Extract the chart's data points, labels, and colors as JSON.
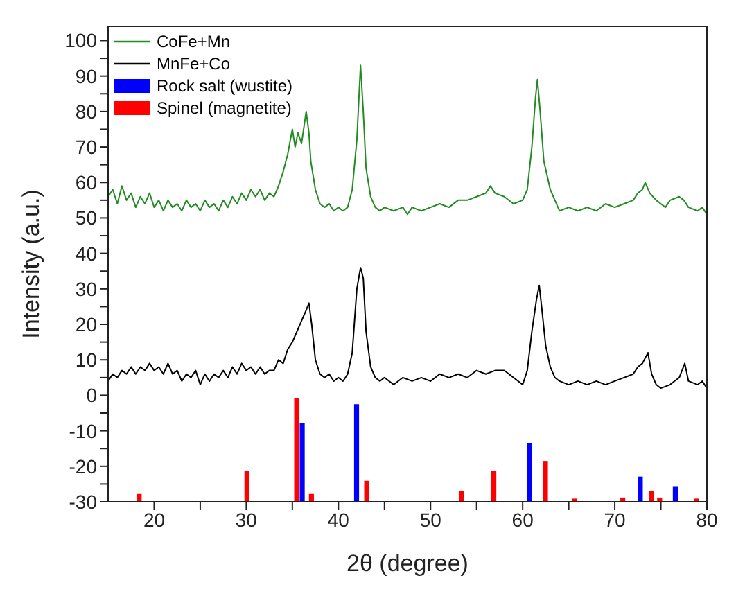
{
  "chart_data": {
    "type": "line",
    "xlabel": "2θ (degree)",
    "ylabel": "Intensity (a.u.)",
    "xlim": [
      15,
      80
    ],
    "ylim": [
      -30,
      104
    ],
    "xticks": [
      20,
      {
        "value": 25,
        "label": null
      },
      30,
      {
        "value": 35,
        "label": null
      },
      40,
      {
        "value": 45,
        "label": null
      },
      50,
      {
        "value": 55,
        "label": null
      },
      60,
      {
        "value": 65,
        "label": null
      },
      70,
      {
        "value": 75,
        "label": null
      },
      80
    ],
    "yticks": [
      -30,
      {
        "value": -25,
        "label": null
      },
      -20,
      {
        "value": -15,
        "label": null
      },
      -10,
      {
        "value": -5,
        "label": null
      },
      0,
      {
        "value": 5,
        "label": null
      },
      10,
      {
        "value": 15,
        "label": null
      },
      20,
      {
        "value": 25,
        "label": null
      },
      30,
      {
        "value": 35,
        "label": null
      },
      40,
      {
        "value": 45,
        "label": null
      },
      50,
      {
        "value": 55,
        "label": null
      },
      60,
      {
        "value": 65,
        "label": null
      },
      70,
      {
        "value": 75,
        "label": null
      },
      80,
      {
        "value": 85,
        "label": null
      },
      90,
      {
        "value": 95,
        "label": null
      },
      100
    ],
    "grid": false,
    "legend": "top left",
    "marker": "none",
    "line_style": "solid",
    "series": [
      {
        "name": "CoFe+Mn",
        "color": "#228b22",
        "x": [
          15,
          15.5,
          16,
          16.5,
          17,
          17.5,
          18,
          18.5,
          19,
          19.5,
          20,
          20.5,
          21,
          21.5,
          22,
          22.5,
          23,
          23.5,
          24,
          24.5,
          25,
          25.5,
          26,
          26.5,
          27,
          27.5,
          28,
          28.5,
          29,
          29.5,
          30,
          30.5,
          31,
          31.5,
          32,
          32.5,
          33,
          33.5,
          34,
          34.5,
          35,
          35.3,
          35.6,
          36,
          36.5,
          36.8,
          37,
          37.5,
          38,
          38.5,
          39,
          39.5,
          40,
          40.5,
          41,
          41.5,
          42,
          42.4,
          42.7,
          43,
          43.5,
          44,
          44.5,
          45,
          46,
          47,
          47.5,
          48,
          49,
          50,
          51,
          52,
          53,
          54,
          55,
          56,
          56.5,
          57,
          58,
          59,
          60,
          60.5,
          61,
          61.4,
          61.6,
          61.9,
          62.3,
          63,
          63.5,
          64,
          65,
          66,
          67,
          68,
          69,
          70,
          71,
          72,
          72.5,
          73,
          73.3,
          73.8,
          74.5,
          75,
          75.5,
          76,
          77,
          77.5,
          78,
          79,
          79.5,
          80
        ],
        "values": [
          56,
          58,
          54,
          59,
          55,
          57,
          53,
          56,
          54,
          57,
          53,
          55,
          52,
          55,
          53,
          54,
          52,
          55,
          53,
          54,
          52,
          55,
          53,
          54,
          52,
          55,
          53,
          56,
          54,
          57,
          55,
          58,
          56,
          58,
          55,
          57,
          56,
          59,
          63,
          68,
          75,
          70,
          74,
          71,
          80,
          74,
          66,
          58,
          54,
          53,
          54,
          52,
          53,
          52,
          53,
          58,
          72,
          93,
          80,
          64,
          56,
          53,
          52,
          53,
          52,
          53,
          51,
          53,
          52,
          53,
          54,
          53,
          55,
          55,
          56,
          57,
          59,
          57,
          56,
          54,
          55,
          58,
          70,
          84,
          89,
          80,
          66,
          58,
          55,
          52,
          53,
          52,
          53,
          52,
          54,
          53,
          54,
          55,
          57,
          58,
          60,
          57,
          55,
          54,
          53,
          55,
          56,
          55,
          53,
          52,
          53,
          51
        ]
      },
      {
        "name": "MnFe+Co",
        "color": "#000000",
        "x": [
          15,
          15.5,
          16,
          16.5,
          17,
          17.5,
          18,
          18.5,
          19,
          19.5,
          20,
          20.5,
          21,
          21.5,
          22,
          22.5,
          23,
          23.5,
          24,
          24.5,
          25,
          25.5,
          26,
          26.5,
          27,
          27.5,
          28,
          28.5,
          29,
          29.5,
          30,
          30.5,
          31,
          31.5,
          32,
          32.5,
          33,
          33.5,
          34,
          34.5,
          35,
          35.5,
          36,
          36.5,
          36.8,
          37.1,
          37.5,
          38,
          38.5,
          39,
          39.5,
          40,
          40.5,
          41,
          41.5,
          42,
          42.4,
          42.7,
          43,
          43.5,
          44,
          44.5,
          45,
          46,
          47,
          48,
          49,
          50,
          51,
          52,
          53,
          54,
          55,
          56,
          57,
          58,
          59,
          60,
          60.5,
          61,
          61.5,
          61.8,
          62.1,
          62.5,
          63,
          63.5,
          64,
          65,
          66,
          67,
          68,
          69,
          70,
          71,
          72,
          72.5,
          73,
          73.6,
          74,
          74.5,
          75,
          76,
          77,
          77.6,
          78,
          79,
          79.5,
          80
        ],
        "values": [
          4,
          6,
          5,
          7,
          6,
          8,
          6,
          8,
          7,
          9,
          7,
          8,
          6,
          9,
          6,
          7,
          4,
          6,
          5,
          7,
          3,
          6,
          4,
          6,
          5,
          7,
          5,
          8,
          6,
          9,
          7,
          8,
          6,
          8,
          6,
          7,
          7,
          10,
          9,
          13,
          15,
          18,
          21,
          24,
          26,
          20,
          10,
          6,
          5,
          6,
          4,
          5,
          4,
          6,
          12,
          30,
          36,
          33,
          18,
          8,
          5,
          4,
          5,
          3,
          5,
          4,
          5,
          4,
          6,
          5,
          6,
          5,
          7,
          6,
          7,
          7,
          5,
          3,
          7,
          18,
          27,
          31,
          24,
          14,
          8,
          5,
          4,
          3,
          4,
          3,
          4,
          3,
          4,
          5,
          6,
          8,
          9,
          12,
          6,
          3,
          2,
          3,
          5,
          9,
          4,
          3,
          4,
          2
        ]
      },
      {
        "name": "Rock salt (wustite)",
        "type": "bar",
        "color": "#0000ff",
        "x": [
          36.1,
          42,
          60.8,
          72.8,
          76.6
        ],
        "base": [
          -30,
          -30,
          -30,
          -30,
          -30
        ],
        "values": [
          22.1,
          27.5,
          16.6,
          7.1,
          4.4
        ]
      },
      {
        "name": "Spinel (magnetite)",
        "type": "bar",
        "color": "#ff0000",
        "x": [
          18.4,
          30.1,
          35.5,
          37.1,
          43.1,
          53.4,
          56.9,
          62.5,
          65.7,
          70.9,
          74,
          74.9,
          78.9
        ],
        "base": [
          -30,
          -30,
          -30,
          -30,
          -30,
          -30,
          -30,
          -30,
          -30,
          -30,
          -30,
          -30,
          -30
        ],
        "values": [
          2.2,
          8.6,
          29.1,
          2.2,
          5.9,
          3,
          8.6,
          11.5,
          0.9,
          1.2,
          3,
          1.2,
          0.9
        ]
      }
    ]
  }
}
